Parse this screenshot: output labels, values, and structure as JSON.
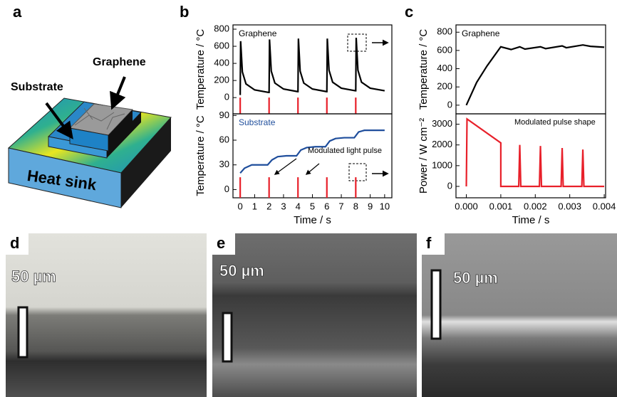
{
  "panels": {
    "a": {
      "label": "a",
      "graphene": "Graphene",
      "substrate": "Substrate",
      "heat_sink": "Heat sink"
    },
    "b": {
      "label": "b"
    },
    "c": {
      "label": "c"
    },
    "d": {
      "label": "d",
      "scale": "50 µm"
    },
    "e": {
      "label": "e",
      "scale": "50 µm"
    },
    "f": {
      "label": "f",
      "scale": "50 µm"
    }
  },
  "chart_data": [
    {
      "type": "line",
      "ylabel": "Temperature / °C",
      "xlim": [
        -0.5,
        10.5
      ],
      "ylim": [
        -190,
        850
      ],
      "yticks": [
        0,
        200,
        400,
        600,
        800
      ],
      "series": [
        {
          "name": "Graphene",
          "color": "#000000",
          "x": [
            0,
            0.03,
            0.15,
            0.4,
            1,
            1.97,
            2,
            2.03,
            2.15,
            2.4,
            3,
            3.97,
            4,
            4.03,
            4.15,
            4.4,
            5,
            5.97,
            6,
            6.03,
            6.15,
            6.4,
            7,
            7.97,
            8,
            8.03,
            8.15,
            8.4,
            9,
            10
          ],
          "values": [
            30,
            660,
            300,
            160,
            90,
            60,
            60,
            680,
            310,
            170,
            100,
            70,
            70,
            690,
            310,
            170,
            100,
            70,
            70,
            690,
            320,
            180,
            110,
            80,
            80,
            700,
            320,
            180,
            110,
            80
          ]
        },
        {
          "color": "#e8202a",
          "x": [
            0,
            0,
            0,
            2,
            2,
            2,
            4,
            4,
            4,
            6,
            6,
            6,
            8,
            8
          ],
          "values": [
            -190,
            0,
            null,
            -190,
            0,
            null,
            -190,
            0,
            null,
            -190,
            0,
            null,
            -190,
            0
          ]
        }
      ]
    },
    {
      "type": "line",
      "ylabel": "Temperature / °C",
      "xlabel": "Time / s",
      "xlim": [
        -0.5,
        10.5
      ],
      "ylim": [
        -10,
        92
      ],
      "yticks": [
        0,
        30,
        60,
        90
      ],
      "xticks": [
        0,
        1,
        2,
        3,
        4,
        5,
        6,
        7,
        8,
        9,
        10
      ],
      "annotations": [
        "Modulated light pulse"
      ],
      "series": [
        {
          "name": "Substrate",
          "color": "#1f4e9c",
          "x": [
            0,
            0.3,
            0.8,
            1.9,
            2.2,
            2.6,
            3.2,
            3.9,
            4.2,
            4.6,
            5.2,
            5.9,
            6.2,
            6.6,
            7.2,
            7.9,
            8.2,
            8.6,
            9.2,
            10
          ],
          "values": [
            20,
            26,
            30,
            30,
            36,
            40,
            41,
            41,
            48,
            51,
            52,
            52,
            59,
            62,
            63,
            63,
            70,
            72,
            72,
            72
          ]
        },
        {
          "color": "#e8202a",
          "x": [
            0,
            0,
            0,
            2,
            2,
            2,
            4,
            4,
            4,
            6,
            6,
            6,
            8,
            8
          ],
          "values": [
            -10,
            15,
            null,
            -10,
            15,
            null,
            -10,
            15,
            null,
            -10,
            15,
            null,
            -10,
            15
          ]
        }
      ]
    },
    {
      "type": "line",
      "ylabel": "Temperature / °C",
      "xlim": [
        -0.0003,
        0.00404
      ],
      "ylim": [
        -95,
        880
      ],
      "yticks": [
        0,
        200,
        400,
        600,
        800
      ],
      "series": [
        {
          "name": "Graphene",
          "color": "#000000",
          "x": [
            0,
            0.0003,
            0.0006,
            0.001,
            0.0013,
            0.00155,
            0.0017,
            0.00215,
            0.0023,
            0.00278,
            0.0029,
            0.00338,
            0.0036,
            0.004
          ],
          "values": [
            0,
            250,
            430,
            640,
            610,
            640,
            615,
            640,
            620,
            650,
            630,
            660,
            645,
            635
          ]
        }
      ]
    },
    {
      "type": "line",
      "ylabel": "Power / W cm⁻²",
      "xlabel": "Time / s",
      "xlim": [
        -0.0003,
        0.00404
      ],
      "ylim": [
        -550,
        3500
      ],
      "yticks": [
        0,
        1000,
        2000,
        3000
      ],
      "xticks": [
        {
          "value": 0,
          "label": "0.000"
        },
        0.001,
        0.002,
        0.003,
        0.004
      ],
      "annotations": [
        "Modulated pulse shape"
      ],
      "series": [
        {
          "color": "#e8202a",
          "x": [
            0,
            2e-05,
            0.001,
            0.001,
            0.00152,
            0.00155,
            0.00158,
            0.00212,
            0.00215,
            0.00218,
            0.00275,
            0.00278,
            0.00281,
            0.00335,
            0.00338,
            0.00341,
            0.004
          ],
          "values": [
            0,
            3250,
            2100,
            0,
            0,
            2000,
            0,
            0,
            1950,
            0,
            0,
            1850,
            0,
            0,
            1780,
            0,
            0
          ]
        }
      ]
    }
  ]
}
